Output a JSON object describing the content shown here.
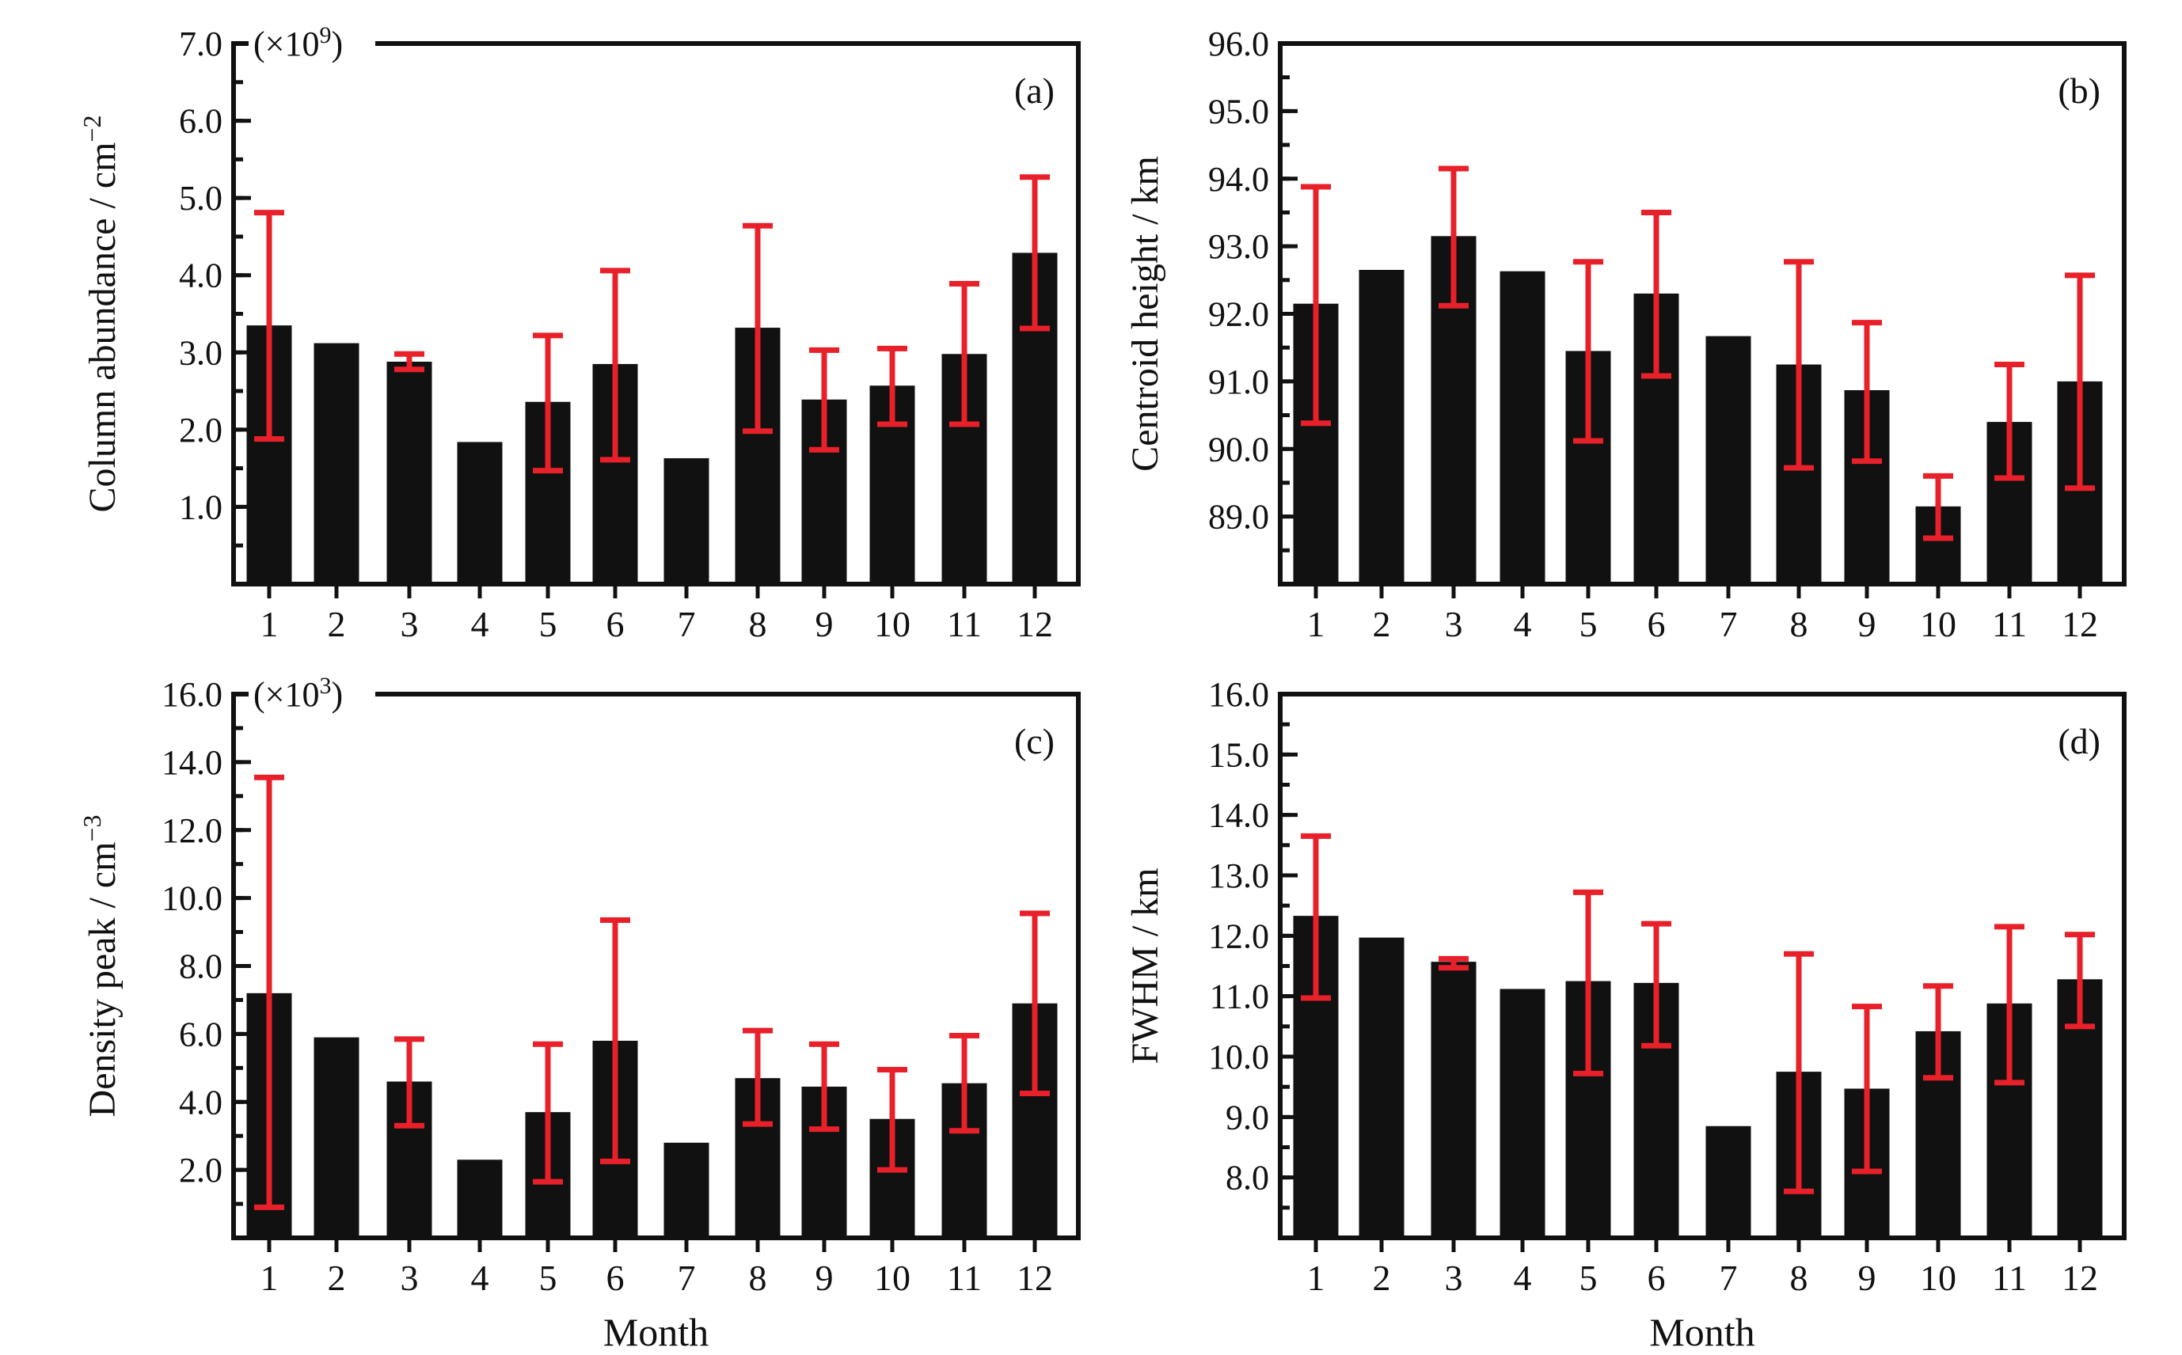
{
  "chart_data": [
    {
      "panel": "a",
      "type": "bar",
      "panel_label": "(a)",
      "scale_label": "(×10",
      "scale_exp": "9",
      "ylabel": "Column abundance / cm",
      "ylabel_sup": "−2",
      "xlabel": "",
      "categories": [
        "1",
        "2",
        "3",
        "4",
        "5",
        "6",
        "7",
        "8",
        "9",
        "10",
        "11",
        "12"
      ],
      "values": [
        3.35,
        3.12,
        2.88,
        1.84,
        2.36,
        2.85,
        1.63,
        3.32,
        2.39,
        2.57,
        2.98,
        4.29
      ],
      "error_low": [
        1.88,
        null,
        2.78,
        null,
        1.47,
        1.61,
        null,
        1.98,
        1.74,
        2.07,
        2.07,
        3.31
      ],
      "error_high": [
        4.81,
        null,
        2.98,
        null,
        3.22,
        4.06,
        null,
        4.64,
        3.03,
        3.05,
        3.89,
        5.27
      ],
      "ylim": [
        0,
        7.0
      ],
      "yticks": [
        "1.0",
        "2.0",
        "3.0",
        "4.0",
        "5.0",
        "6.0",
        "7.0"
      ],
      "bar_color": "#111111",
      "error_color": "#e8202a"
    },
    {
      "panel": "b",
      "type": "bar",
      "panel_label": "(b)",
      "scale_label": "",
      "scale_exp": "",
      "ylabel": "Centroid height / km",
      "ylabel_sup": "",
      "xlabel": "",
      "categories": [
        "1",
        "2",
        "3",
        "4",
        "5",
        "6",
        "7",
        "8",
        "9",
        "10",
        "11",
        "12"
      ],
      "values": [
        92.15,
        92.65,
        93.15,
        92.63,
        91.45,
        92.3,
        91.67,
        91.25,
        90.87,
        89.15,
        90.4,
        91.0
      ],
      "error_low": [
        90.38,
        null,
        92.12,
        null,
        90.12,
        91.08,
        null,
        89.72,
        89.82,
        88.68,
        89.57,
        89.42
      ],
      "error_high": [
        93.88,
        null,
        94.15,
        null,
        92.77,
        93.5,
        null,
        92.77,
        91.87,
        89.6,
        91.25,
        92.57
      ],
      "ylim": [
        88.0,
        96.0
      ],
      "yticks": [
        "89.0",
        "90.0",
        "91.0",
        "92.0",
        "93.0",
        "94.0",
        "95.0",
        "96.0"
      ],
      "bar_color": "#111111",
      "error_color": "#e8202a"
    },
    {
      "panel": "c",
      "type": "bar",
      "panel_label": "(c)",
      "scale_label": "(×10",
      "scale_exp": "3",
      "ylabel": "Density peak / cm",
      "ylabel_sup": "−3",
      "xlabel": "Month",
      "categories": [
        "1",
        "2",
        "3",
        "4",
        "5",
        "6",
        "7",
        "8",
        "9",
        "10",
        "11",
        "12"
      ],
      "values": [
        7.2,
        5.9,
        4.6,
        2.3,
        3.7,
        5.8,
        2.8,
        4.7,
        4.45,
        3.5,
        4.55,
        6.9
      ],
      "error_low": [
        0.9,
        null,
        3.3,
        null,
        1.65,
        2.25,
        null,
        3.35,
        3.2,
        2.0,
        3.15,
        4.25
      ],
      "error_high": [
        13.55,
        null,
        5.85,
        null,
        5.7,
        9.35,
        null,
        6.1,
        5.7,
        4.95,
        5.95,
        9.55
      ],
      "ylim": [
        0,
        16.0
      ],
      "yticks": [
        "2.0",
        "4.0",
        "6.0",
        "8.0",
        "10.0",
        "12.0",
        "14.0",
        "16.0"
      ],
      "bar_color": "#111111",
      "error_color": "#e8202a"
    },
    {
      "panel": "d",
      "type": "bar",
      "panel_label": "(d)",
      "scale_label": "",
      "scale_exp": "",
      "ylabel": "FWHM / km",
      "ylabel_sup": "",
      "xlabel": "Month",
      "categories": [
        "1",
        "2",
        "3",
        "4",
        "5",
        "6",
        "7",
        "8",
        "9",
        "10",
        "11",
        "12"
      ],
      "values": [
        12.33,
        11.97,
        11.57,
        11.12,
        11.25,
        11.22,
        8.85,
        9.75,
        9.47,
        10.42,
        10.88,
        11.28
      ],
      "error_low": [
        10.97,
        null,
        11.47,
        null,
        9.72,
        10.18,
        null,
        7.77,
        8.1,
        9.65,
        9.57,
        10.5
      ],
      "error_high": [
        13.65,
        null,
        11.62,
        null,
        12.72,
        12.2,
        null,
        11.7,
        10.83,
        11.17,
        12.15,
        12.02
      ],
      "ylim": [
        7.0,
        16.0
      ],
      "yticks": [
        "8.0",
        "9.0",
        "10.0",
        "11.0",
        "12.0",
        "13.0",
        "14.0",
        "15.0",
        "16.0"
      ],
      "bar_color": "#111111",
      "error_color": "#e8202a"
    }
  ]
}
